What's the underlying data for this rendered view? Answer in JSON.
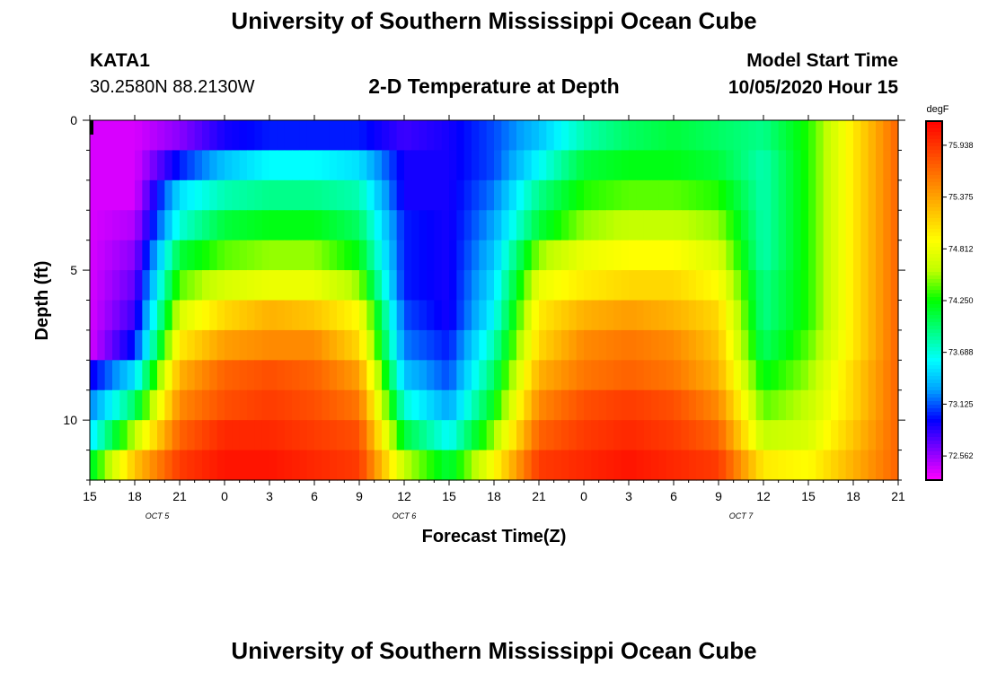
{
  "header": {
    "title": "University of Southern Mississippi Ocean Cube",
    "station_id": "KATA1",
    "station_coords": "30.2580N 88.2130W",
    "plot_title": "2-D Temperature at Depth",
    "model_start_label": "Model Start Time",
    "model_start_value": "10/05/2020 Hour 15"
  },
  "footer": {
    "title": "University of Southern Mississippi Ocean Cube"
  },
  "chart_data": {
    "type": "heatmap",
    "title": "2-D Temperature at Depth",
    "xlabel": "Forecast Time(Z)",
    "ylabel": "Depth (ft)",
    "x_hours": [
      0,
      54
    ],
    "ylim": [
      0,
      12
    ],
    "x_ticks": [
      "15",
      "18",
      "21",
      "0",
      "3",
      "6",
      "9",
      "12",
      "15",
      "18",
      "21",
      "0",
      "3",
      "6",
      "9",
      "12",
      "15",
      "18",
      "21"
    ],
    "date_labels": [
      {
        "text": "OCT 5",
        "hour": 4.5
      },
      {
        "text": "OCT 6",
        "hour": 21
      },
      {
        "text": "OCT 7",
        "hour": 43.5
      }
    ],
    "y_ticks": [
      0,
      5,
      10
    ],
    "colorbar": {
      "unit": "degF",
      "min": 72.3,
      "max": 76.2,
      "ticks": [
        "75.938",
        "75.375",
        "74.812",
        "74.250",
        "73.688",
        "73.125",
        "72.562"
      ],
      "colors": [
        "#ff00ff",
        "#8000ff",
        "#0000ff",
        "#00a0ff",
        "#00ffff",
        "#00ff80",
        "#00ff00",
        "#c0ff00",
        "#ffff00",
        "#ffc000",
        "#ff8000",
        "#ff4000",
        "#ff0000"
      ]
    },
    "depth_levels_ft": [
      0.5,
      1.5,
      2.5,
      3.5,
      4.5,
      5.5,
      6.5,
      7.5,
      8.5,
      9.5,
      10.5,
      11.5
    ],
    "time_hours": [
      0,
      3,
      6,
      9,
      12,
      15,
      18,
      21,
      24,
      27,
      30,
      33,
      36,
      39,
      42,
      45,
      48,
      51,
      54
    ],
    "temperature_degF": [
      [
        72.4,
        72.4,
        72.6,
        72.9,
        73.0,
        73.0,
        73.0,
        72.8,
        72.9,
        73.1,
        73.4,
        73.8,
        74.0,
        74.1,
        74.0,
        73.9,
        74.3,
        75.0,
        75.7
      ],
      [
        72.4,
        72.4,
        73.0,
        73.4,
        73.6,
        73.6,
        73.5,
        72.9,
        72.9,
        73.1,
        73.6,
        74.1,
        74.2,
        74.2,
        74.1,
        73.8,
        74.3,
        75.0,
        75.7
      ],
      [
        72.4,
        72.4,
        73.5,
        73.8,
        73.9,
        73.9,
        73.8,
        72.9,
        72.9,
        73.2,
        73.9,
        74.3,
        74.4,
        74.4,
        74.3,
        73.8,
        74.3,
        75.0,
        75.7
      ],
      [
        72.4,
        72.5,
        73.7,
        74.1,
        74.2,
        74.2,
        74.0,
        73.0,
        72.9,
        73.3,
        74.1,
        74.5,
        74.6,
        74.6,
        74.5,
        73.8,
        74.3,
        75.0,
        75.7
      ],
      [
        72.4,
        72.6,
        74.1,
        74.4,
        74.5,
        74.5,
        74.2,
        73.0,
        72.9,
        73.4,
        74.5,
        74.8,
        74.9,
        74.9,
        74.7,
        73.8,
        74.3,
        75.0,
        75.7
      ],
      [
        72.4,
        72.7,
        74.4,
        74.7,
        74.8,
        74.8,
        74.5,
        73.0,
        72.9,
        73.5,
        74.8,
        75.0,
        75.1,
        75.1,
        74.9,
        73.9,
        74.3,
        75.0,
        75.7
      ],
      [
        72.4,
        72.8,
        74.7,
        75.1,
        75.3,
        75.2,
        74.9,
        73.1,
        72.9,
        73.6,
        75.0,
        75.3,
        75.4,
        75.3,
        75.1,
        73.9,
        74.3,
        75.0,
        75.7
      ],
      [
        72.4,
        73.0,
        75.0,
        75.4,
        75.5,
        75.5,
        75.1,
        73.2,
        73.0,
        73.8,
        75.1,
        75.5,
        75.6,
        75.5,
        75.2,
        74.0,
        74.4,
        75.0,
        75.7
      ],
      [
        72.9,
        73.5,
        75.3,
        75.7,
        75.8,
        75.7,
        75.4,
        73.4,
        73.1,
        74.0,
        75.3,
        75.6,
        75.7,
        75.6,
        75.3,
        74.2,
        74.5,
        75.1,
        75.7
      ],
      [
        73.2,
        74.0,
        75.5,
        75.8,
        75.9,
        75.8,
        75.6,
        73.7,
        73.3,
        74.2,
        75.5,
        75.8,
        75.9,
        75.8,
        75.5,
        74.4,
        74.6,
        75.1,
        75.7
      ],
      [
        73.5,
        74.6,
        75.7,
        76.0,
        76.0,
        75.9,
        75.8,
        74.1,
        73.6,
        74.5,
        75.7,
        75.9,
        76.0,
        75.9,
        75.7,
        74.6,
        74.7,
        75.2,
        75.7
      ],
      [
        74.1,
        75.2,
        75.9,
        76.1,
        76.1,
        76.0,
        75.9,
        74.6,
        74.1,
        74.9,
        75.9,
        76.0,
        76.1,
        76.0,
        75.9,
        75.0,
        74.9,
        75.3,
        75.7
      ]
    ]
  }
}
